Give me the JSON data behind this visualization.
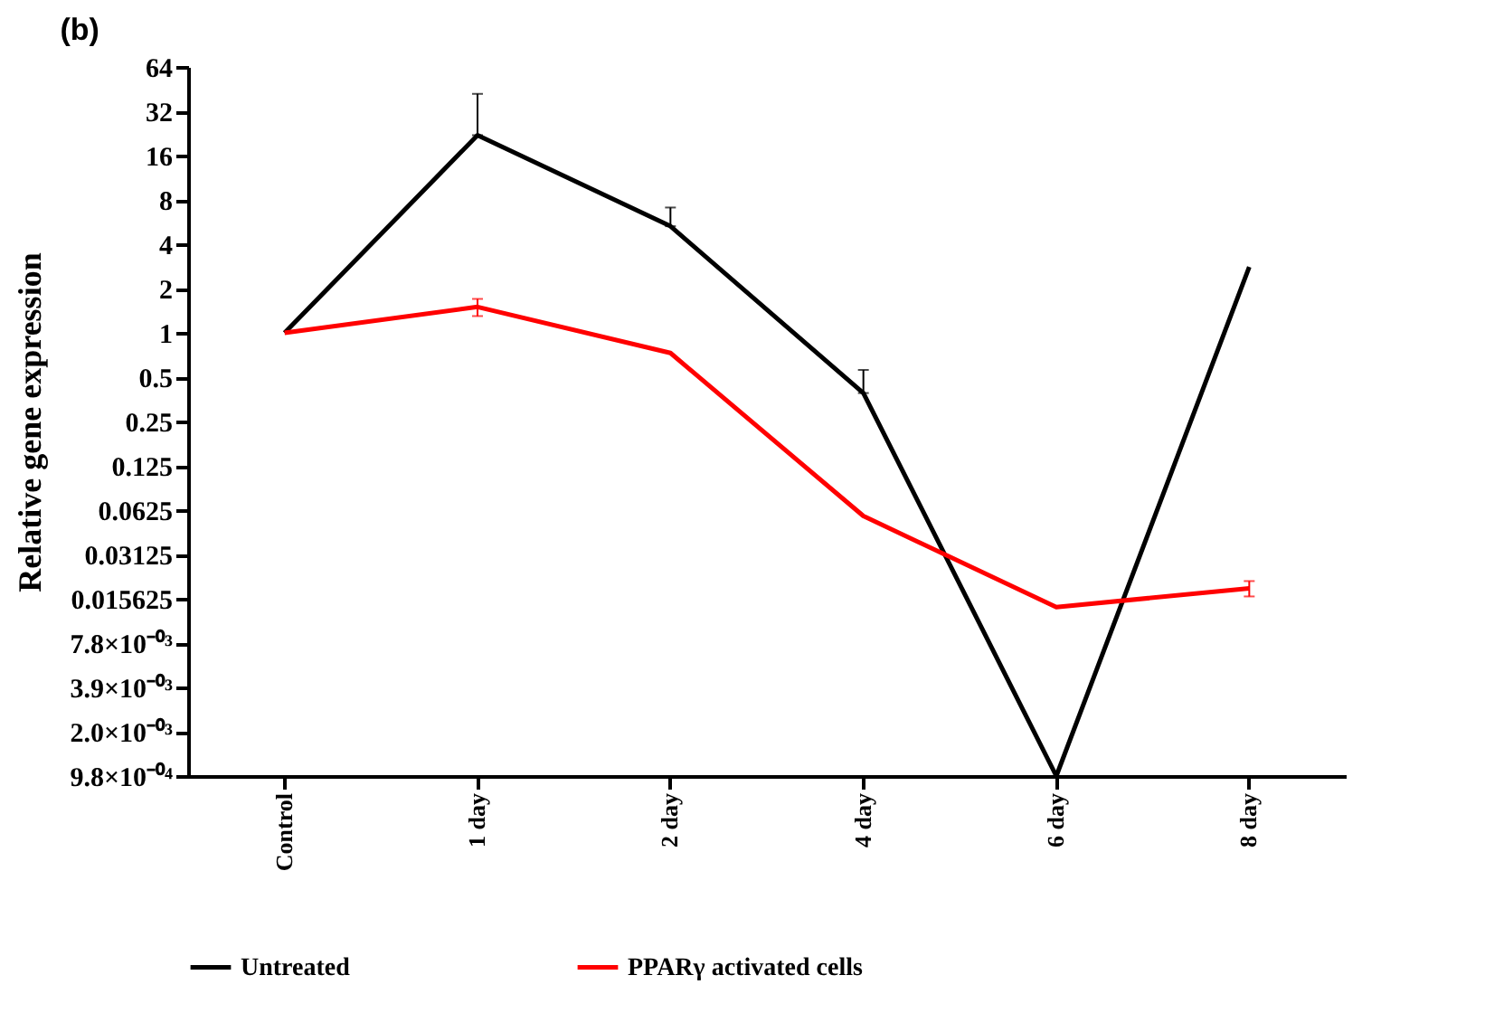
{
  "chart_data": {
    "type": "line",
    "title": "(b)",
    "ylabel": "Relative gene expression",
    "categories": [
      "Control",
      "1 day",
      "2 day",
      "4 day",
      "6 day",
      "8 day"
    ],
    "series": [
      {
        "name": "Untreated",
        "color": "#000000",
        "values": [
          1,
          22,
          5.3,
          0.39,
          0.0009765625,
          2.8
        ],
        "errors": [
          null,
          [
            22,
            42
          ],
          [
            5.3,
            7.1
          ],
          [
            0.39,
            0.56
          ],
          null,
          null
        ]
      },
      {
        "name": "PPARγ activated cells",
        "color": "#ff0000",
        "values": [
          1,
          1.5,
          0.73,
          0.057,
          0.0137,
          0.0184
        ],
        "errors": [
          null,
          [
            1.3,
            1.7
          ],
          null,
          null,
          null,
          [
            0.0162,
            0.0206
          ]
        ]
      }
    ],
    "log": true,
    "ylim": [
      0.0009765625,
      64
    ],
    "yticks": [
      64,
      32,
      16,
      8,
      4,
      2,
      1,
      0.5,
      0.25,
      0.125,
      0.0625,
      0.03125,
      0.015625,
      {
        "value": 0.0078125,
        "label": "7.8×10⁻⁰³"
      },
      {
        "value": 0.00390625,
        "label": "3.9×10⁻⁰³"
      },
      {
        "value": 0.001953125,
        "label": "2.0×10⁻⁰³"
      },
      {
        "value": 0.0009765625,
        "label": "9.8×10⁻⁰⁴"
      }
    ],
    "grid": false,
    "legend": "bottom",
    "marker": "none",
    "line_style": "solid"
  }
}
